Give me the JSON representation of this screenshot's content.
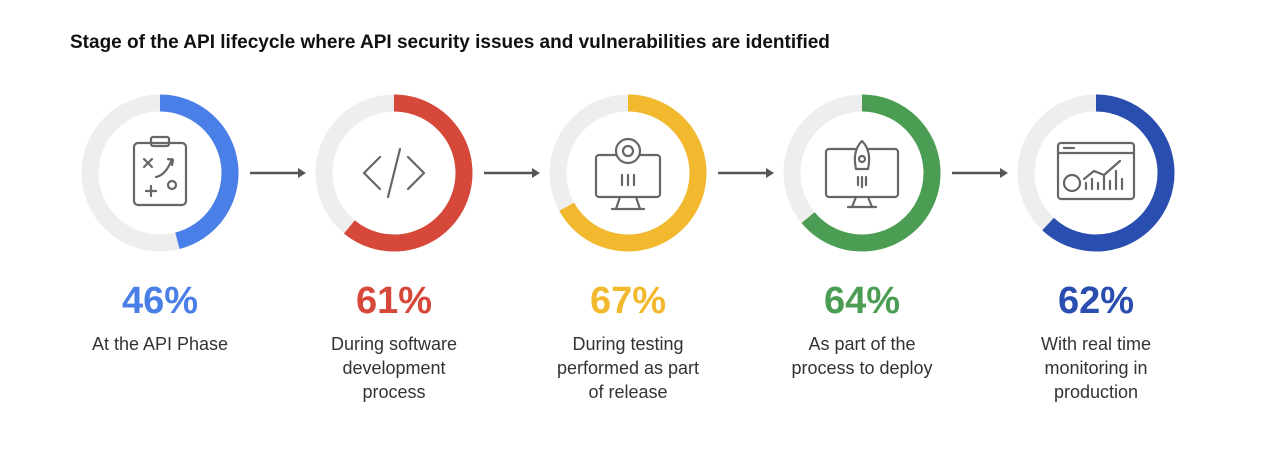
{
  "chart_data": {
    "type": "donut",
    "title": "Stage of the API lifecycle where API security issues and vulnerabilities are identified",
    "categories": [
      "At the API Phase",
      "During software development process",
      "During testing performed as part of release",
      "As part of the process to deploy",
      "With real time monitoring in production"
    ],
    "values": [
      46,
      61,
      67,
      64,
      62
    ],
    "value_labels": [
      "46%",
      "61%",
      "67%",
      "64%",
      "62%"
    ],
    "colors": [
      "#4a7fe8",
      "#d5483a",
      "#f2b92f",
      "#4b9d54",
      "#2a4db0"
    ],
    "ylim": [
      0,
      100
    ]
  }
}
